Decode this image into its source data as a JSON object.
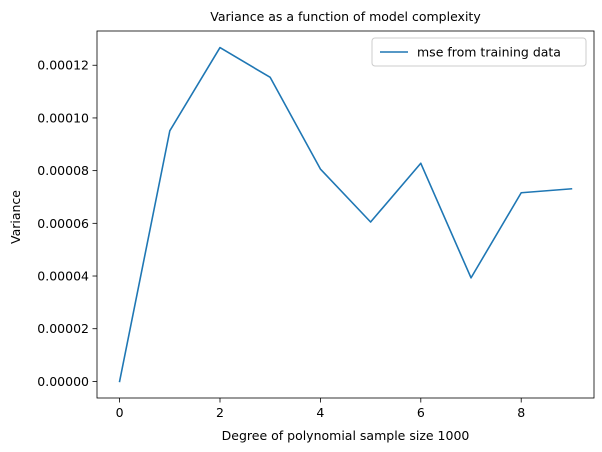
{
  "chart_data": {
    "type": "line",
    "title": "Variance as a function of model complexity",
    "xlabel": "Degree of polynomial sample size 1000",
    "ylabel": "Variance",
    "xlim": [
      -0.45,
      9.45
    ],
    "ylim": [
      -6.3e-06,
      0.000133
    ],
    "xticks": [
      0,
      2,
      4,
      6,
      8
    ],
    "xtick_labels": [
      "0",
      "2",
      "4",
      "6",
      "8"
    ],
    "yticks": [
      0,
      2e-05,
      4e-05,
      6e-05,
      8e-05,
      0.0001,
      0.00012
    ],
    "ytick_labels": [
      "0.00000",
      "0.00002",
      "0.00004",
      "0.00006",
      "0.00008",
      "0.00010",
      "0.00012"
    ],
    "grid": false,
    "legend_position": "top-right",
    "series": [
      {
        "name": "mse from training data",
        "color": "#1f77b4",
        "x": [
          0,
          1,
          2,
          3,
          4,
          5,
          6,
          7,
          8,
          9
        ],
        "y": [
          0.0,
          9.51e-05,
          0.0001267,
          0.0001154,
          8.06e-05,
          6.05e-05,
          8.28e-05,
          3.93e-05,
          7.16e-05,
          7.31e-05
        ]
      }
    ]
  }
}
